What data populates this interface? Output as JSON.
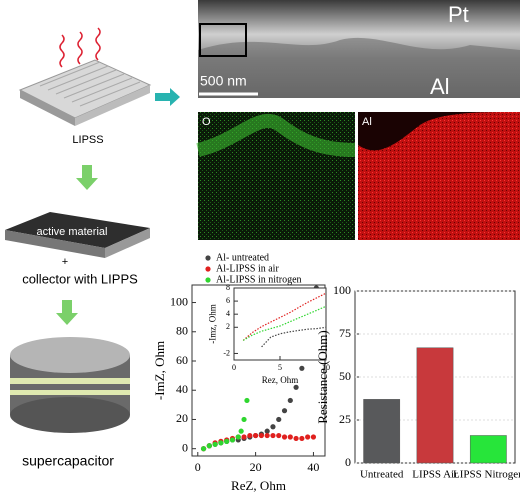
{
  "figure": {
    "lipss": "LIPSS",
    "active_material": "active material",
    "plus": "+",
    "collector": "collector with LIPPS",
    "supercapacitor": "supercapacitor",
    "pt": "Pt",
    "al": "Al",
    "scale": "500 nm",
    "map_o": "O",
    "map_al": "Al"
  },
  "chart_data": [
    {
      "type": "scatter",
      "xlabel": "ReZ, Ohm",
      "ylabel": "-ImZ, Ohm",
      "xlim": [
        -2,
        44
      ],
      "ylim": [
        -5,
        112
      ],
      "xticks": [
        0,
        20,
        40
      ],
      "yticks": [
        0,
        20,
        40,
        60,
        80,
        100
      ],
      "series": [
        {
          "name": "Al- untreated",
          "color": "#444444",
          "x": [
            2,
            4,
            6,
            8,
            10,
            12,
            14,
            16,
            18,
            20,
            22,
            24,
            26,
            28,
            30,
            32,
            34,
            36,
            38,
            40,
            41
          ],
          "values": [
            0,
            2,
            3,
            4,
            5,
            6,
            6,
            7,
            8,
            9,
            10,
            12,
            15,
            20,
            26,
            33,
            42,
            55,
            70,
            88,
            110
          ]
        },
        {
          "name": "Al-LIPSS in air",
          "color": "#e0201e",
          "x": [
            2,
            4,
            6,
            8,
            10,
            12,
            14,
            16,
            18,
            20,
            22,
            24,
            26,
            28,
            30,
            32,
            34,
            36,
            38,
            40
          ],
          "values": [
            0,
            2,
            4,
            5,
            6,
            7,
            8,
            8,
            9,
            9,
            9,
            9,
            9,
            9,
            8,
            8,
            7,
            7,
            8,
            8
          ]
        },
        {
          "name": "Al-LIPSS in nitrogen",
          "color": "#2fd62f",
          "x": [
            2,
            4,
            6,
            8,
            10,
            12,
            14,
            15,
            16,
            17
          ],
          "values": [
            0,
            2,
            3,
            4,
            5,
            6,
            8,
            12,
            20,
            33
          ]
        }
      ]
    },
    {
      "type": "line",
      "xlabel": "Rez, Ohm",
      "ylabel": "-Imz, Ohm",
      "xlim": [
        0,
        10
      ],
      "ylim": [
        -3,
        8
      ],
      "xticks": [
        0,
        5,
        10
      ],
      "yticks": [
        -2,
        2,
        4,
        6,
        8
      ],
      "series": [
        {
          "name": "Al- untreated",
          "color": "#444444",
          "x": [
            3,
            4,
            5,
            6,
            7,
            8,
            9,
            10
          ],
          "values": [
            -1,
            0.5,
            1,
            1.3,
            1.5,
            1.7,
            1.8,
            2
          ]
        },
        {
          "name": "Al-LIPSS in air",
          "color": "#e0201e",
          "x": [
            1,
            2,
            3,
            4,
            5,
            6,
            7,
            8,
            9,
            10
          ],
          "values": [
            0,
            1.2,
            2.1,
            2.8,
            3.5,
            4.2,
            5,
            5.8,
            6.5,
            7.2
          ]
        },
        {
          "name": "Al-LIPSS in nitrogen",
          "color": "#2fd62f",
          "x": [
            1,
            2,
            3,
            4,
            5,
            6,
            7,
            8,
            9,
            10
          ],
          "values": [
            0,
            0.8,
            1.4,
            1.8,
            2.2,
            2.8,
            3.4,
            4,
            4.6,
            5.2
          ]
        }
      ]
    },
    {
      "type": "bar",
      "ylabel": "Resistance (Ohm)",
      "ylim": [
        0,
        100
      ],
      "yticks": [
        0,
        25,
        50,
        75,
        100
      ],
      "categories": [
        "Untreated",
        "LIPSS Air",
        "LIPSS Nitrogen"
      ],
      "values": [
        37,
        67,
        16
      ],
      "colors": [
        "#58595b",
        "#c8393c",
        "#27e53a"
      ]
    }
  ]
}
